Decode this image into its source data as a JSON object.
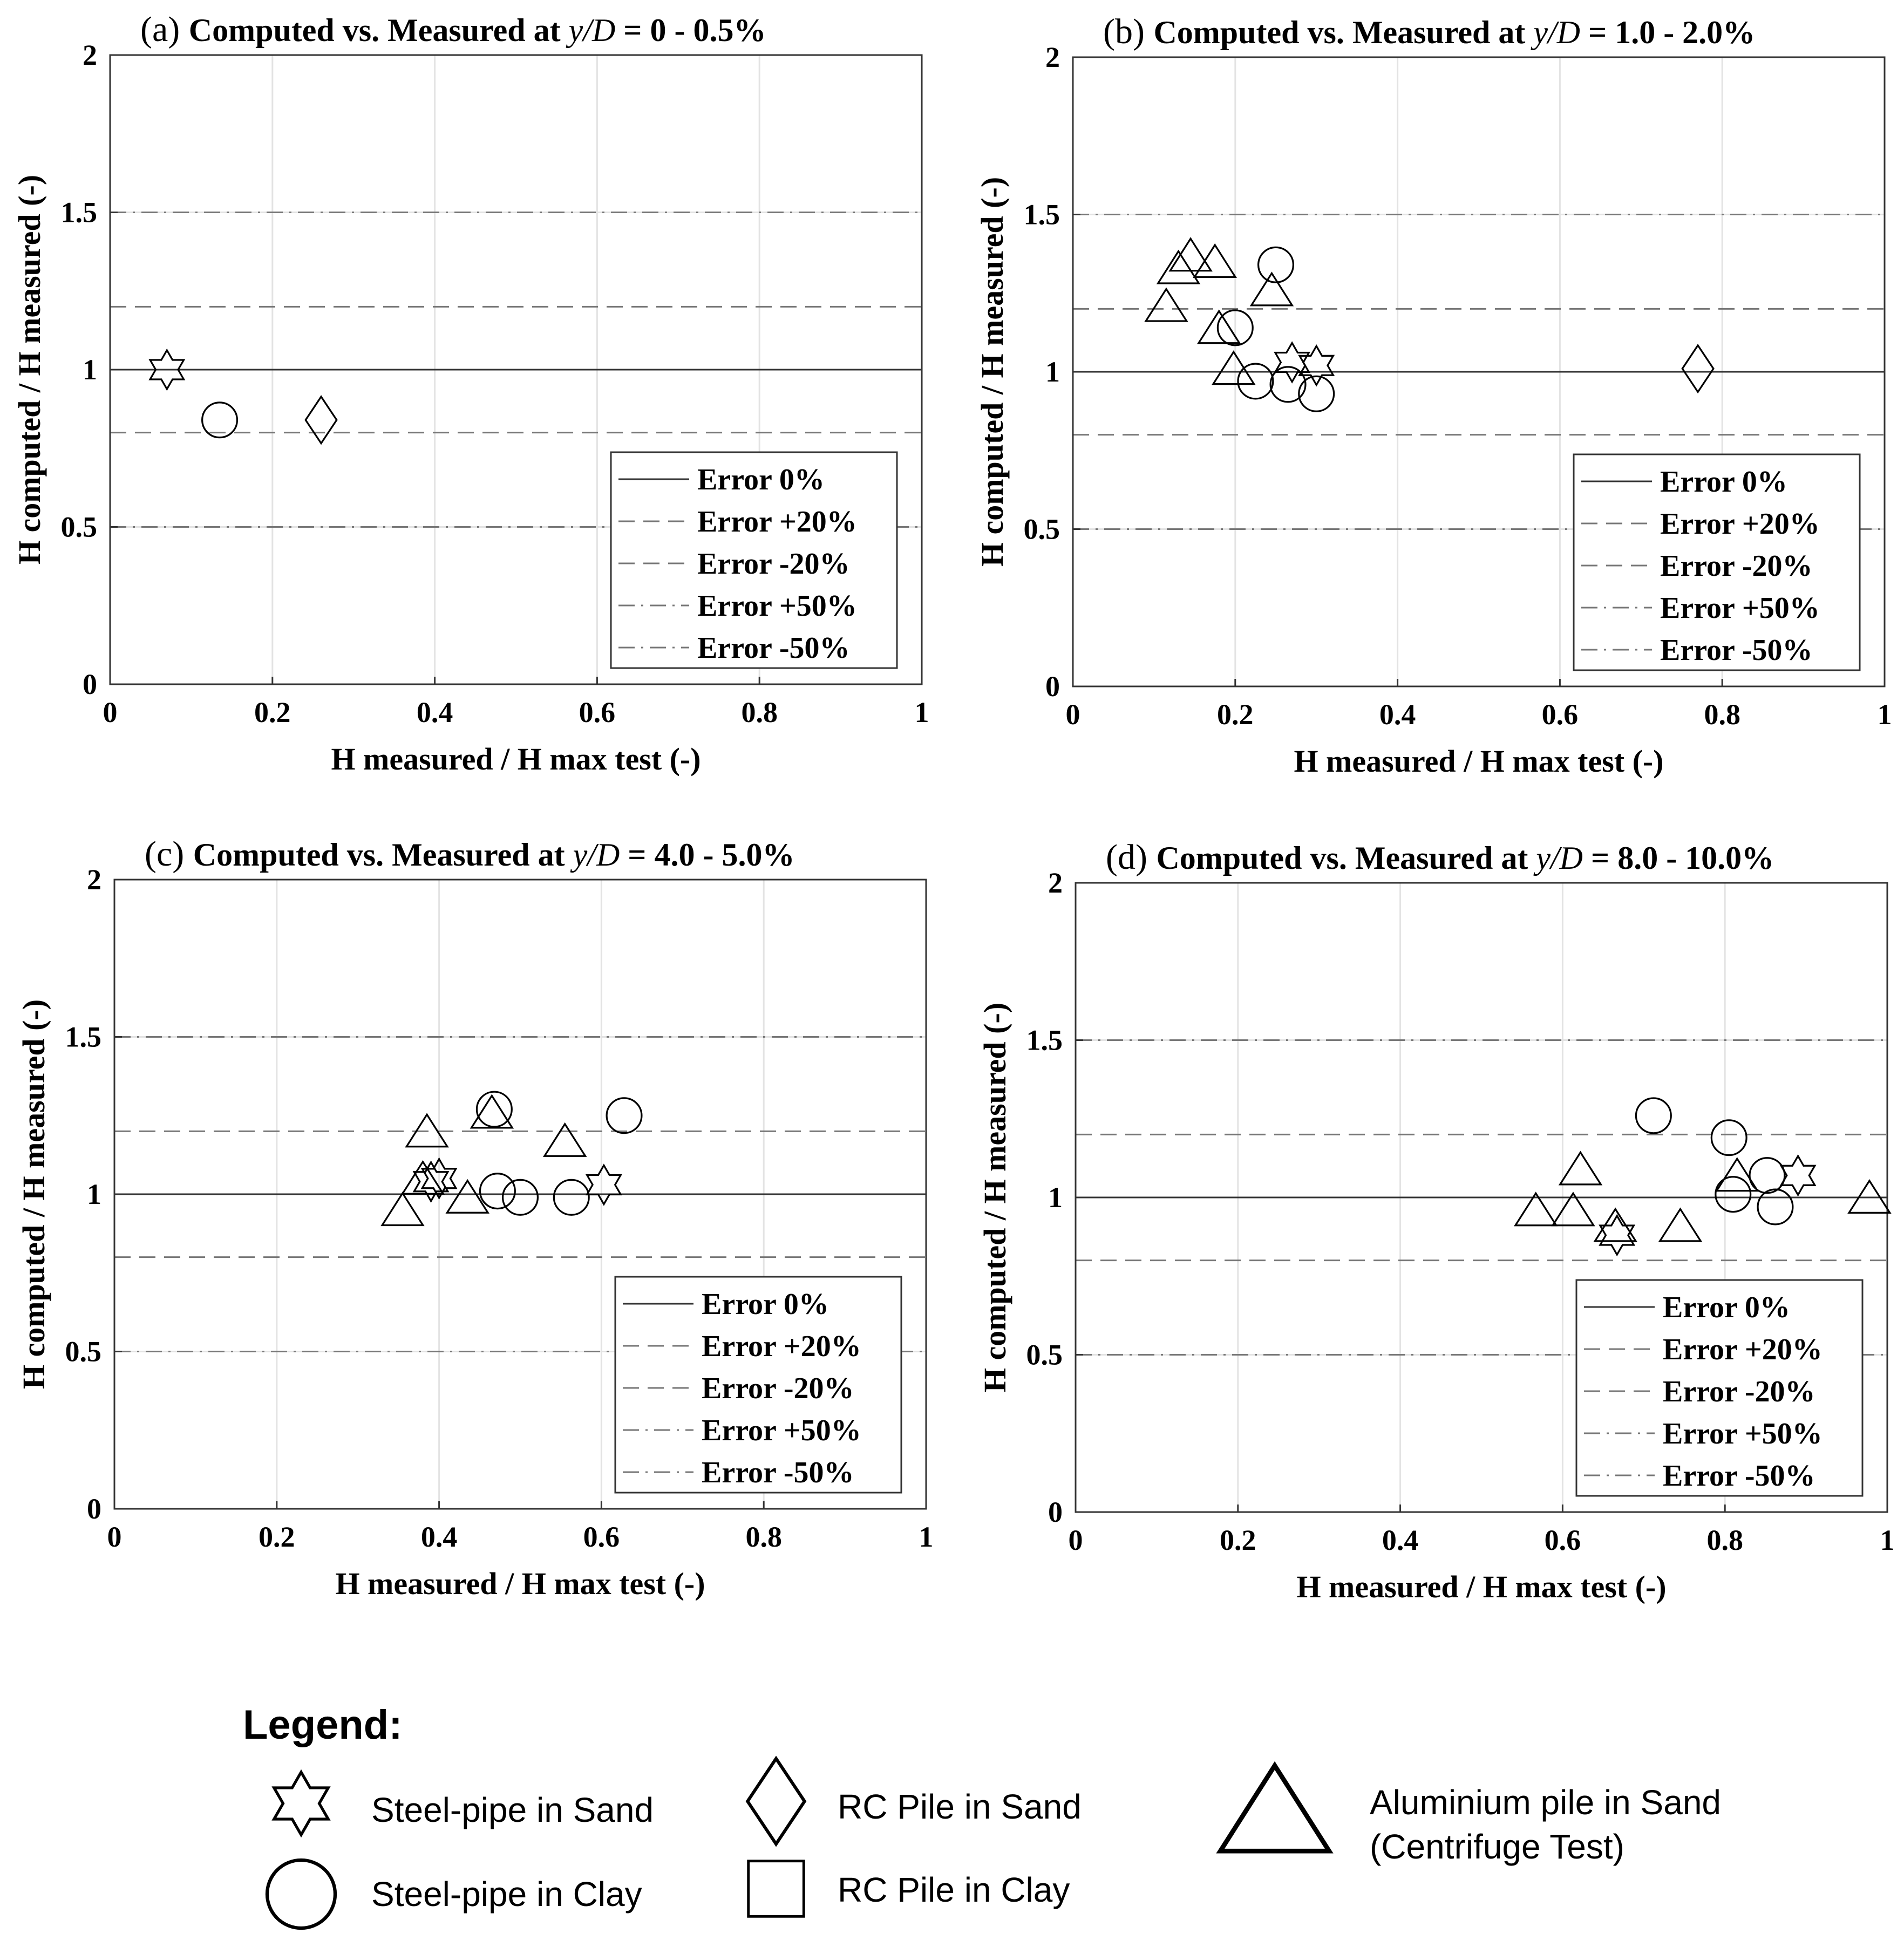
{
  "reference_lines": [
    {
      "label": "Error 0%",
      "value": 1.0,
      "style": "solid",
      "color": "#333333"
    },
    {
      "label": "Error +20%",
      "value": 1.2,
      "style": "dashed",
      "color": "#777777"
    },
    {
      "label": "Error -20%",
      "value": 0.8,
      "style": "dashed",
      "color": "#777777"
    },
    {
      "label": "Error +50%",
      "value": 1.5,
      "style": "dashdot",
      "color": "#777777"
    },
    {
      "label": "Error -50%",
      "value": 0.5,
      "style": "dashdot",
      "color": "#777777"
    }
  ],
  "bottom_legend": {
    "title": "Legend:",
    "items": [
      {
        "marker": "star-icon",
        "label_lines": [
          "Steel-pipe in Sand"
        ]
      },
      {
        "marker": "circle-icon",
        "label_lines": [
          "Steel-pipe in Clay"
        ]
      },
      {
        "marker": "diamond-icon",
        "label_lines": [
          "RC Pile in Sand"
        ]
      },
      {
        "marker": "square-icon",
        "label_lines": [
          "RC Pile in Clay"
        ]
      },
      {
        "marker": "triangle-icon",
        "label_lines": [
          "Aluminium  pile in Sand",
          "(Centrifuge Test)"
        ]
      }
    ]
  },
  "chart_data": [
    {
      "type": "scatter",
      "panel_letter": "(a)",
      "title_prefix": "Computed vs. Measured at ",
      "title_var": "y/D",
      "title_suffix": " = 0 - 0.5%",
      "xlabel": "H measured / H max test (-)",
      "ylabel": "H computed / H measured (-)",
      "xlim": [
        0,
        1
      ],
      "ylim": [
        0,
        2
      ],
      "xticks": [
        0,
        0.2,
        0.4,
        0.6,
        0.8,
        1
      ],
      "xtick_labels": [
        "0",
        "0.2",
        "0.4",
        "0.6",
        "0.8",
        "1"
      ],
      "yticks": [
        0,
        0.5,
        1,
        1.5,
        2
      ],
      "ytick_labels": [
        "0",
        "0.5",
        "1",
        "1.5",
        "2"
      ],
      "grid": true,
      "legend_position": "bottom-right",
      "points": [
        {
          "marker": "star",
          "x": 0.07,
          "y": 1.0
        },
        {
          "marker": "circle",
          "x": 0.135,
          "y": 0.84
        },
        {
          "marker": "diamond",
          "x": 0.26,
          "y": 0.84
        }
      ]
    },
    {
      "type": "scatter",
      "panel_letter": "(b)",
      "title_prefix": "Computed vs. Measured at ",
      "title_var": "y/D",
      "title_suffix": " = 1.0 - 2.0%",
      "xlabel": "H measured / H max test (-)",
      "ylabel": "H computed / H measured (-)",
      "xlim": [
        0,
        1
      ],
      "ylim": [
        0,
        2
      ],
      "xticks": [
        0,
        0.2,
        0.4,
        0.6,
        0.8,
        1
      ],
      "xtick_labels": [
        "0",
        "0.2",
        "0.4",
        "0.6",
        "0.8",
        "1"
      ],
      "yticks": [
        0,
        0.5,
        1,
        1.5,
        2
      ],
      "ytick_labels": [
        "0",
        "0.5",
        "1",
        "1.5",
        "2"
      ],
      "grid": true,
      "legend_position": "bottom-right",
      "points": [
        {
          "marker": "triangle",
          "x": 0.115,
          "y": 1.2
        },
        {
          "marker": "triangle",
          "x": 0.13,
          "y": 1.32
        },
        {
          "marker": "triangle",
          "x": 0.145,
          "y": 1.36
        },
        {
          "marker": "triangle",
          "x": 0.175,
          "y": 1.34
        },
        {
          "marker": "triangle",
          "x": 0.18,
          "y": 1.13
        },
        {
          "marker": "triangle",
          "x": 0.198,
          "y": 1.0
        },
        {
          "marker": "triangle",
          "x": 0.245,
          "y": 1.25
        },
        {
          "marker": "circle",
          "x": 0.2,
          "y": 1.14
        },
        {
          "marker": "circle",
          "x": 0.225,
          "y": 0.97
        },
        {
          "marker": "circle",
          "x": 0.25,
          "y": 1.34
        },
        {
          "marker": "circle",
          "x": 0.265,
          "y": 0.96
        },
        {
          "marker": "circle",
          "x": 0.3,
          "y": 0.93
        },
        {
          "marker": "star",
          "x": 0.27,
          "y": 1.03
        },
        {
          "marker": "star",
          "x": 0.3,
          "y": 1.02
        },
        {
          "marker": "diamond",
          "x": 0.77,
          "y": 1.01
        }
      ]
    },
    {
      "type": "scatter",
      "panel_letter": "(c)",
      "title_prefix": "Computed vs. Measured at ",
      "title_var": "y/D",
      "title_suffix": " = 4.0 - 5.0%",
      "xlabel": "H measured / H max test (-)",
      "ylabel": "H computed / H measured (-)",
      "xlim": [
        0,
        1
      ],
      "ylim": [
        0,
        2
      ],
      "xticks": [
        0,
        0.2,
        0.4,
        0.6,
        0.8,
        1
      ],
      "xtick_labels": [
        "0",
        "0.2",
        "0.4",
        "0.6",
        "0.8",
        "1"
      ],
      "yticks": [
        0,
        0.5,
        1,
        1.5,
        2
      ],
      "ytick_labels": [
        "0",
        "0.5",
        "1",
        "1.5",
        "2"
      ],
      "grid": true,
      "legend_position": "bottom-right",
      "points": [
        {
          "marker": "triangle",
          "x": 0.355,
          "y": 0.94
        },
        {
          "marker": "triangle",
          "x": 0.38,
          "y": 1.04
        },
        {
          "marker": "triangle",
          "x": 0.385,
          "y": 1.19
        },
        {
          "marker": "triangle",
          "x": 0.435,
          "y": 0.98
        },
        {
          "marker": "triangle",
          "x": 0.465,
          "y": 1.25
        },
        {
          "marker": "triangle",
          "x": 0.555,
          "y": 1.16
        },
        {
          "marker": "star",
          "x": 0.39,
          "y": 1.04
        },
        {
          "marker": "star",
          "x": 0.4,
          "y": 1.05
        },
        {
          "marker": "star",
          "x": 0.603,
          "y": 1.03
        },
        {
          "marker": "circle",
          "x": 0.468,
          "y": 1.27
        },
        {
          "marker": "circle",
          "x": 0.472,
          "y": 1.01
        },
        {
          "marker": "circle",
          "x": 0.5,
          "y": 0.99
        },
        {
          "marker": "circle",
          "x": 0.563,
          "y": 0.99
        },
        {
          "marker": "circle",
          "x": 0.628,
          "y": 1.25
        }
      ]
    },
    {
      "type": "scatter",
      "panel_letter": "(d)",
      "title_prefix": "Computed vs. Measured at ",
      "title_var": "y/D",
      "title_suffix": " = 8.0 - 10.0%",
      "xlabel": "H measured / H max test (-)",
      "ylabel": "H computed / H measured (-)",
      "xlim": [
        0,
        1
      ],
      "ylim": [
        0,
        2
      ],
      "xticks": [
        0,
        0.2,
        0.4,
        0.6,
        0.8,
        1
      ],
      "xtick_labels": [
        "0",
        "0.2",
        "0.4",
        "0.6",
        "0.8",
        "1"
      ],
      "yticks": [
        0,
        0.5,
        1,
        1.5,
        2
      ],
      "ytick_labels": [
        "0",
        "0.5",
        "1",
        "1.5",
        "2"
      ],
      "grid": true,
      "legend_position": "bottom-right",
      "points": [
        {
          "marker": "triangle",
          "x": 0.567,
          "y": 0.95
        },
        {
          "marker": "triangle",
          "x": 0.613,
          "y": 0.95
        },
        {
          "marker": "triangle",
          "x": 0.622,
          "y": 1.08
        },
        {
          "marker": "triangle",
          "x": 0.665,
          "y": 0.9
        },
        {
          "marker": "triangle",
          "x": 0.745,
          "y": 0.9
        },
        {
          "marker": "triangle",
          "x": 0.815,
          "y": 1.06
        },
        {
          "marker": "triangle",
          "x": 0.978,
          "y": 0.99
        },
        {
          "marker": "star",
          "x": 0.667,
          "y": 0.88
        },
        {
          "marker": "star",
          "x": 0.89,
          "y": 1.07
        },
        {
          "marker": "circle",
          "x": 0.712,
          "y": 1.26
        },
        {
          "marker": "circle",
          "x": 0.805,
          "y": 1.19
        },
        {
          "marker": "circle",
          "x": 0.81,
          "y": 1.01
        },
        {
          "marker": "circle",
          "x": 0.852,
          "y": 1.07
        },
        {
          "marker": "circle",
          "x": 0.862,
          "y": 0.97
        }
      ]
    }
  ]
}
